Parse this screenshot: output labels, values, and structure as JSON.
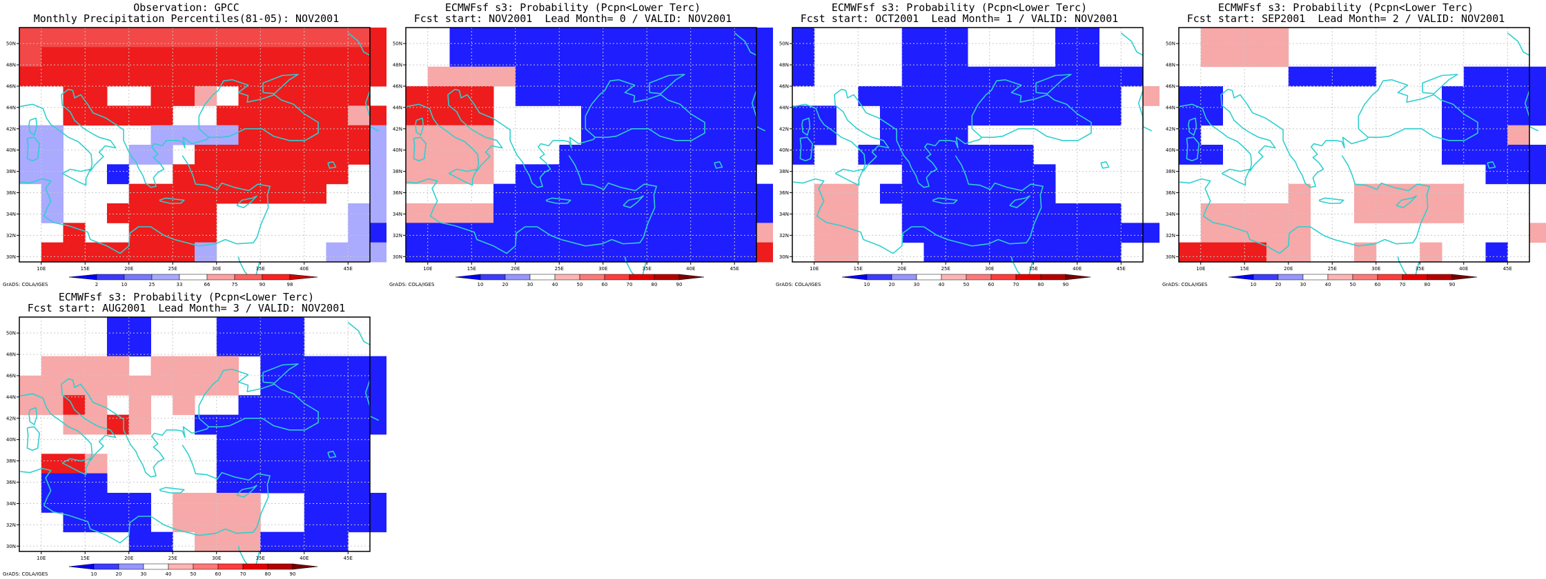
{
  "grid": {
    "lon_min": 7.5,
    "lon_max": 47.5,
    "lat_min": 29.5,
    "lat_max": 51.5,
    "cell_deg": 2.5,
    "lon_ticks": [
      "10E",
      "15E",
      "20E",
      "25E",
      "30E",
      "35E",
      "40E",
      "45E"
    ],
    "lat_ticks": [
      "30N",
      "32N",
      "34N",
      "36N",
      "38N",
      "40N",
      "42N",
      "44N",
      "46N",
      "48N",
      "50N"
    ],
    "credit": "GrADS: COLA/IGES"
  },
  "colors": {
    "coastline": "#2ecfcf",
    "gridline": "#c8c8c8",
    "land_blank": "#ffffff"
  },
  "panels": [
    {
      "id": "obs",
      "title_line1": "Observation: GPCC",
      "title_line2": "Monthly Precipitation Percentiles(81-05): NOV2001",
      "colorbar": {
        "labels": [
          "2",
          "10",
          "25",
          "33",
          "66",
          "75",
          "90",
          "98"
        ],
        "colors": [
          "#0000ff",
          "#3a3aff",
          "#7878ff",
          "#a8a8ff",
          "#ffffff",
          "#ffa0a0",
          "#ff6060",
          "#ff2020",
          "#d00000"
        ]
      },
      "cells": [
        "rrrrrrrrrrrrrrrrRrrr",
        "rRRRRRRRRRRRRRRRRRRR",
        "RRRRRRRRRRRRRRRRRRRR",
        "wwRRwwRRpwRRRRRRwwRR",
        "wwRRRRRwwRRRRRRpRRRR",
        "bbwwwwbbbbRRRRRRbbbb",
        "bbwwwbbwRRRRRRRRbbbb",
        "bbwwBwwRRRRRRRRwbbbb",
        "wbwwwRRRRRRRRRwwbbbb",
        "wbwwRRRRRwwwwwwbbbbb",
        "wwRwwRRRRwwwwwwbBBbb",
        "wRRRRRRRbwwwwwbbbBBb"
      ]
    },
    {
      "id": "lead0",
      "title_line1": "ECMWFsf s3: Probability (Pcpn<Lower Terc)",
      "title_line2": "Fcst start: NOV2001  Lead Month= 0 / VALID: NOV2001",
      "colorbar": {
        "labels": [
          "10",
          "20",
          "30",
          "40",
          "50",
          "60",
          "70",
          "80",
          "90"
        ],
        "colors": [
          "#0000ff",
          "#3c3cff",
          "#9696ff",
          "#ffffff",
          "#ffb4b4",
          "#ff7878",
          "#ff3c3c",
          "#e60000",
          "#b40000",
          "#780000"
        ]
      },
      "cells": [
        "wwBBBBBBBBBBBBBBBBBB",
        "wwBBBBBBBBBBBBBBBBBB",
        "wppppBBBBBBBBBBBBBBB",
        "RRRRwBBBBBBBBBBBBBBw",
        "RRRRwwwwBBBBBBBBBwwB",
        "ppppwwwwBBBBBBBBBBwB",
        "ppppwwwBBBBBBBBBBBBw",
        "ppppwBBBBBBBBBBBwwwp",
        "wwwwBBBBBBBBBBBBBBRR",
        "ppppBBBBBBBBBBBBBBRR",
        "BBBBBBBBBBBBBBBBpRDD",
        "BBBBBBBBBBBBBBBBRRDD"
      ]
    },
    {
      "id": "lead1",
      "title_line1": "ECMWFsf s3: Probability (Pcpn<Lower Terc)",
      "title_line2": "Fcst start: OCT2001  Lead Month= 1 / VALID: NOV2001",
      "colorbar": {
        "labels": [
          "10",
          "20",
          "30",
          "40",
          "50",
          "60",
          "70",
          "80",
          "90"
        ],
        "colors": [
          "#0000ff",
          "#3c3cff",
          "#9696ff",
          "#ffffff",
          "#ffb4b4",
          "#ff7878",
          "#ff3c3c",
          "#e60000",
          "#b40000",
          "#780000"
        ]
      },
      "cells": [
        "BwwwwBBBwwwwBBwwwRpR",
        "BwwwwBBBwwwwBBwwwRpR",
        "BwwwwBBBBBBBBBBBwwwR",
        "wwwBBBBBBBBBBBBwpppR",
        "BBwwBBBBBBBBBBBwwwpR",
        "BBwwBBBBwwwwwwwwwwpR",
        "BwwBBBBBBBBwwwwwwwpw",
        "wwwwwBBBBBBBwwwwwwww",
        "wppwBBBBBBBBwwwwwppw",
        "wppwwBBBBBBBBBBwwppw",
        "wppwwBBBBBBBBBBBBppw",
        "wppwwwBBBBBBBBBwwwwp"
      ]
    },
    {
      "id": "lead2",
      "title_line1": "ECMWFsf s3: Probability (Pcpn<Lower Terc)",
      "title_line2": "Fcst start: SEP2001  Lead Month= 2 / VALID: NOV2001",
      "colorbar": {
        "labels": [
          "10",
          "20",
          "30",
          "40",
          "50",
          "60",
          "70",
          "80",
          "90"
        ],
        "colors": [
          "#0000ff",
          "#3c3cff",
          "#9696ff",
          "#ffffff",
          "#ffb4b4",
          "#ff7878",
          "#ff3c3c",
          "#e60000",
          "#b40000",
          "#780000"
        ]
      },
      "cells": [
        "wppppwwwwwwwwwwwwBpw",
        "wppppwwwwwwwwwwwwBpw",
        "wwwwwBBBBwwwwBBBBBBw",
        "BBwwwwwwwwwwBBBBBBwB",
        "BBwwwwwwwwwwBBBBBBwB",
        "BwwwwwwwwwwwBBBpwwww",
        "BBwwwwwwwwwwBBBBBwwp",
        "wwwwwwwwwwwwwwBBBwww",
        "wwwwwpwwpppppwwwwwww",
        "wpppppwwpppppwwwwwww",
        "wpppppwwwwwwwwwwppww",
        "RRRRppwwpwwpwwBwwppw"
      ]
    },
    {
      "id": "lead3",
      "title_line1": "ECMWFsf s3: Probability (Pcpn<Lower Terc)",
      "title_line2": "Fcst start: AUG2001  Lead Month= 3 / VALID: NOV2001",
      "colorbar": {
        "labels": [
          "10",
          "20",
          "30",
          "40",
          "50",
          "60",
          "70",
          "80",
          "90"
        ],
        "colors": [
          "#0000ff",
          "#3c3cff",
          "#9696ff",
          "#ffffff",
          "#ffb4b4",
          "#ff7878",
          "#ff3c3c",
          "#e60000",
          "#b40000",
          "#780000"
        ]
      },
      "cells": [
        "wwwwBBwwwBBBBwwwwwww",
        "wwwwBBwwwBBBBwwwwwww",
        "wppppwppppwBBBBBBBBw",
        "ppppppppppwBBBBBBBBB",
        "ppRpwpwpwwBBBBBBBBBB",
        "wwppRpwwBBBBBBBBBBBp",
        "wwwwwwwwwBBBBBBBwwww",
        "wRRpwwwwwBBBBBBBwwBw",
        "wBBBwwwwwBBBBBBBwwww",
        "wBBBBBwppppwwBBBBBBB",
        "wwBBBBwppppwwBBBBBBB",
        "wwwwwBBwpppBBBBwwwBw"
      ]
    }
  ]
}
